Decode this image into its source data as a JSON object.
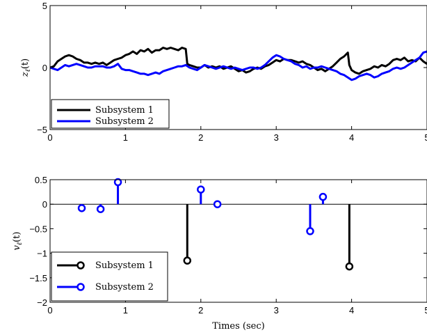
{
  "chart_data": [
    {
      "type": "line",
      "ylabel": "z_ℓ(t)",
      "ylabel_main": "z",
      "ylabel_sub": "ℓ",
      "ylabel_arg": "(t)",
      "xlim": [
        0,
        5
      ],
      "ylim": [
        -5,
        5
      ],
      "xticks": [
        "0",
        "1",
        "2",
        "3",
        "4",
        "5"
      ],
      "yticks": [
        "−5",
        "0",
        "5"
      ],
      "grid": false,
      "legend_position": "bottom-left",
      "series": [
        {
          "name": "Subsystem 1",
          "color": "#000000",
          "points": [
            [
              0,
              0.0
            ],
            [
              0.05,
              0.1
            ],
            [
              0.1,
              0.5
            ],
            [
              0.15,
              0.7
            ],
            [
              0.2,
              0.9
            ],
            [
              0.25,
              1.0
            ],
            [
              0.3,
              0.9
            ],
            [
              0.35,
              0.7
            ],
            [
              0.4,
              0.6
            ],
            [
              0.45,
              0.4
            ],
            [
              0.5,
              0.4
            ],
            [
              0.55,
              0.3
            ],
            [
              0.6,
              0.4
            ],
            [
              0.65,
              0.3
            ],
            [
              0.7,
              0.4
            ],
            [
              0.75,
              0.2
            ],
            [
              0.8,
              0.4
            ],
            [
              0.85,
              0.6
            ],
            [
              0.9,
              0.7
            ],
            [
              0.95,
              0.8
            ],
            [
              1.0,
              1.0
            ],
            [
              1.05,
              1.1
            ],
            [
              1.1,
              1.3
            ],
            [
              1.15,
              1.1
            ],
            [
              1.2,
              1.4
            ],
            [
              1.25,
              1.3
            ],
            [
              1.3,
              1.5
            ],
            [
              1.35,
              1.2
            ],
            [
              1.4,
              1.4
            ],
            [
              1.45,
              1.4
            ],
            [
              1.5,
              1.6
            ],
            [
              1.55,
              1.5
            ],
            [
              1.6,
              1.6
            ],
            [
              1.65,
              1.5
            ],
            [
              1.7,
              1.4
            ],
            [
              1.75,
              1.6
            ],
            [
              1.8,
              1.5
            ],
            [
              1.82,
              0.3
            ],
            [
              1.85,
              0.2
            ],
            [
              1.9,
              0.1
            ],
            [
              1.95,
              0.0
            ],
            [
              2.0,
              0.0
            ],
            [
              2.05,
              0.2
            ],
            [
              2.1,
              0.0
            ],
            [
              2.15,
              0.1
            ],
            [
              2.2,
              0.0
            ],
            [
              2.25,
              0.1
            ],
            [
              2.3,
              -0.1
            ],
            [
              2.35,
              0.0
            ],
            [
              2.4,
              0.1
            ],
            [
              2.45,
              -0.1
            ],
            [
              2.5,
              -0.3
            ],
            [
              2.55,
              -0.2
            ],
            [
              2.6,
              -0.4
            ],
            [
              2.65,
              -0.3
            ],
            [
              2.7,
              -0.1
            ],
            [
              2.75,
              0.0
            ],
            [
              2.8,
              -0.1
            ],
            [
              2.85,
              0.1
            ],
            [
              2.9,
              0.2
            ],
            [
              2.95,
              0.4
            ],
            [
              3.0,
              0.6
            ],
            [
              3.05,
              0.5
            ],
            [
              3.1,
              0.7
            ],
            [
              3.15,
              0.6
            ],
            [
              3.2,
              0.6
            ],
            [
              3.25,
              0.5
            ],
            [
              3.3,
              0.4
            ],
            [
              3.35,
              0.5
            ],
            [
              3.4,
              0.3
            ],
            [
              3.45,
              0.2
            ],
            [
              3.5,
              0.0
            ],
            [
              3.55,
              -0.2
            ],
            [
              3.6,
              -0.1
            ],
            [
              3.65,
              -0.3
            ],
            [
              3.7,
              -0.1
            ],
            [
              3.75,
              0.1
            ],
            [
              3.8,
              0.4
            ],
            [
              3.85,
              0.7
            ],
            [
              3.9,
              0.9
            ],
            [
              3.95,
              1.2
            ],
            [
              3.97,
              0.2
            ],
            [
              4.0,
              -0.2
            ],
            [
              4.05,
              -0.4
            ],
            [
              4.1,
              -0.5
            ],
            [
              4.15,
              -0.3
            ],
            [
              4.2,
              -0.2
            ],
            [
              4.25,
              -0.1
            ],
            [
              4.3,
              0.1
            ],
            [
              4.35,
              0.0
            ],
            [
              4.4,
              0.2
            ],
            [
              4.45,
              0.1
            ],
            [
              4.5,
              0.3
            ],
            [
              4.55,
              0.6
            ],
            [
              4.6,
              0.7
            ],
            [
              4.65,
              0.6
            ],
            [
              4.7,
              0.8
            ],
            [
              4.75,
              0.5
            ],
            [
              4.8,
              0.6
            ],
            [
              4.85,
              0.5
            ],
            [
              4.9,
              0.8
            ],
            [
              4.95,
              0.5
            ],
            [
              5.0,
              0.3
            ]
          ]
        },
        {
          "name": "Subsystem 2",
          "color": "#0000ff",
          "points": [
            [
              0,
              0.0
            ],
            [
              0.05,
              -0.1
            ],
            [
              0.1,
              -0.2
            ],
            [
              0.15,
              0.0
            ],
            [
              0.2,
              0.2
            ],
            [
              0.25,
              0.1
            ],
            [
              0.3,
              0.2
            ],
            [
              0.35,
              0.3
            ],
            [
              0.4,
              0.2
            ],
            [
              0.45,
              0.1
            ],
            [
              0.5,
              0.0
            ],
            [
              0.55,
              0.0
            ],
            [
              0.6,
              0.1
            ],
            [
              0.65,
              0.1
            ],
            [
              0.7,
              0.1
            ],
            [
              0.75,
              0.0
            ],
            [
              0.8,
              0.0
            ],
            [
              0.85,
              0.1
            ],
            [
              0.9,
              0.3
            ],
            [
              0.95,
              -0.1
            ],
            [
              1.0,
              -0.2
            ],
            [
              1.05,
              -0.2
            ],
            [
              1.1,
              -0.3
            ],
            [
              1.15,
              -0.4
            ],
            [
              1.2,
              -0.5
            ],
            [
              1.25,
              -0.5
            ],
            [
              1.3,
              -0.6
            ],
            [
              1.35,
              -0.5
            ],
            [
              1.4,
              -0.4
            ],
            [
              1.45,
              -0.5
            ],
            [
              1.5,
              -0.3
            ],
            [
              1.55,
              -0.2
            ],
            [
              1.6,
              -0.1
            ],
            [
              1.65,
              0.0
            ],
            [
              1.7,
              0.1
            ],
            [
              1.75,
              0.1
            ],
            [
              1.8,
              0.2
            ],
            [
              1.85,
              0.0
            ],
            [
              1.9,
              -0.1
            ],
            [
              1.95,
              -0.2
            ],
            [
              2.0,
              0.0
            ],
            [
              2.05,
              0.2
            ],
            [
              2.1,
              0.1
            ],
            [
              2.15,
              0.0
            ],
            [
              2.2,
              -0.1
            ],
            [
              2.25,
              0.0
            ],
            [
              2.3,
              0.1
            ],
            [
              2.35,
              0.0
            ],
            [
              2.4,
              -0.1
            ],
            [
              2.45,
              0.0
            ],
            [
              2.5,
              -0.1
            ],
            [
              2.55,
              -0.2
            ],
            [
              2.6,
              -0.1
            ],
            [
              2.65,
              0.0
            ],
            [
              2.7,
              0.0
            ],
            [
              2.75,
              -0.1
            ],
            [
              2.8,
              0.0
            ],
            [
              2.85,
              0.2
            ],
            [
              2.9,
              0.5
            ],
            [
              2.95,
              0.8
            ],
            [
              3.0,
              1.0
            ],
            [
              3.05,
              0.9
            ],
            [
              3.1,
              0.7
            ],
            [
              3.15,
              0.6
            ],
            [
              3.2,
              0.5
            ],
            [
              3.25,
              0.3
            ],
            [
              3.3,
              0.2
            ],
            [
              3.35,
              0.0
            ],
            [
              3.4,
              0.1
            ],
            [
              3.45,
              -0.1
            ],
            [
              3.5,
              0.0
            ],
            [
              3.55,
              0.0
            ],
            [
              3.6,
              0.1
            ],
            [
              3.65,
              0.0
            ],
            [
              3.7,
              -0.1
            ],
            [
              3.75,
              -0.2
            ],
            [
              3.8,
              -0.3
            ],
            [
              3.85,
              -0.5
            ],
            [
              3.9,
              -0.6
            ],
            [
              3.95,
              -0.8
            ],
            [
              4.0,
              -1.0
            ],
            [
              4.05,
              -0.9
            ],
            [
              4.1,
              -0.7
            ],
            [
              4.15,
              -0.6
            ],
            [
              4.2,
              -0.5
            ],
            [
              4.25,
              -0.6
            ],
            [
              4.3,
              -0.8
            ],
            [
              4.35,
              -0.7
            ],
            [
              4.4,
              -0.5
            ],
            [
              4.45,
              -0.4
            ],
            [
              4.5,
              -0.3
            ],
            [
              4.55,
              -0.1
            ],
            [
              4.6,
              0.0
            ],
            [
              4.65,
              -0.1
            ],
            [
              4.7,
              0.0
            ],
            [
              4.75,
              0.2
            ],
            [
              4.8,
              0.4
            ],
            [
              4.85,
              0.6
            ],
            [
              4.9,
              0.8
            ],
            [
              4.95,
              1.2
            ],
            [
              5.0,
              1.3
            ]
          ]
        }
      ]
    },
    {
      "type": "stem",
      "xlabel": "Times (sec)",
      "ylabel": "v_ℓ(t)",
      "ylabel_main": "v",
      "ylabel_sub": "ℓ",
      "ylabel_arg": "(t)",
      "xlim": [
        0,
        5
      ],
      "ylim": [
        -2,
        0.5
      ],
      "xticks": [
        "0",
        "1",
        "2",
        "3",
        "4",
        "5"
      ],
      "yticks": [
        "−2",
        "−1.5",
        "−1",
        "−0.5",
        "0",
        "0.5"
      ],
      "ytick_values": [
        -2,
        -1.5,
        -1,
        -0.5,
        0,
        0.5
      ],
      "grid": false,
      "legend_position": "bottom-left",
      "series": [
        {
          "name": "Subsystem 1",
          "color": "#000000",
          "x": [
            1.82,
            3.97
          ],
          "y": [
            -1.15,
            -1.27
          ]
        },
        {
          "name": "Subsystem 2",
          "color": "#0000ff",
          "x": [
            0.42,
            0.67,
            0.9,
            2.0,
            2.22,
            3.45,
            3.62
          ],
          "y": [
            -0.08,
            -0.1,
            0.45,
            0.3,
            0.0,
            -0.55,
            0.15
          ]
        }
      ]
    }
  ]
}
